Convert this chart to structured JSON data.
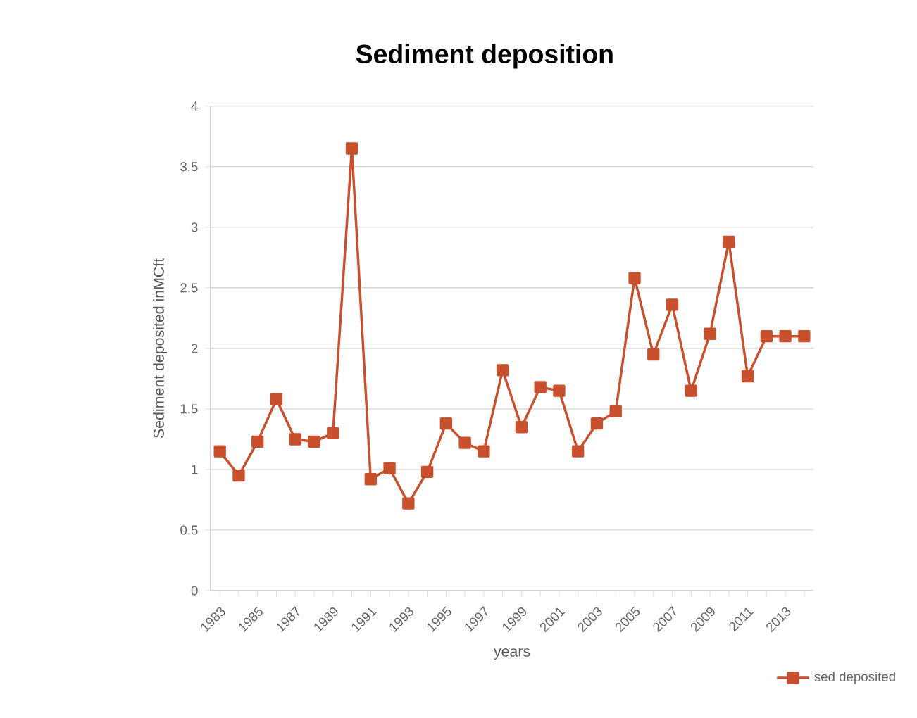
{
  "chart_data": {
    "type": "line",
    "title": "Sediment deposition",
    "xlabel": "years",
    "ylabel": "Sediment deposited inMCft",
    "categories": [
      "1983",
      null,
      "1985",
      null,
      "1987",
      null,
      "1989",
      null,
      "1991",
      null,
      "1993",
      null,
      "1995",
      null,
      "1997",
      null,
      "1999",
      null,
      "2001",
      null,
      "2003",
      null,
      "2005",
      null,
      "2007",
      null,
      "2009",
      null,
      "2011",
      null,
      "2013",
      null
    ],
    "series": [
      {
        "name": "sed deposited",
        "color": "#c8502d",
        "values": [
          1.15,
          0.95,
          1.23,
          1.58,
          1.25,
          1.23,
          1.3,
          3.65,
          0.92,
          1.01,
          0.72,
          0.98,
          1.38,
          1.22,
          1.15,
          1.82,
          1.35,
          1.68,
          1.65,
          1.15,
          1.38,
          1.48,
          2.58,
          1.95,
          2.36,
          1.65,
          2.12,
          2.88,
          1.77,
          2.1,
          2.1,
          2.1
        ]
      }
    ],
    "ylim": [
      0,
      4
    ],
    "yticks": [
      0,
      0.5,
      1,
      1.5,
      2,
      2.5,
      3,
      3.5,
      4
    ],
    "grid": "y",
    "legend": "bottom right",
    "marker": "square",
    "line_style": "solid"
  }
}
